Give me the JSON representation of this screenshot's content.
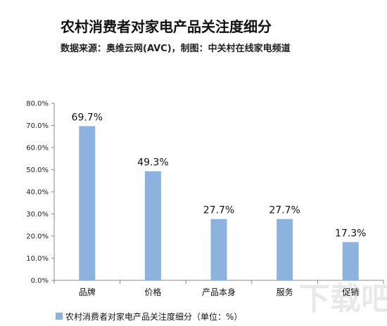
{
  "header": {
    "title": "农村消费者对家电产品关注度细分",
    "subtitle": "数据来源：奥维云网(AVC)，制图：中关村在线家电频道"
  },
  "chart_data": {
    "type": "bar",
    "categories": [
      "品牌",
      "价格",
      "产品本身",
      "服务",
      "促销"
    ],
    "series": [
      {
        "name": "农村消费者对家电产品关注度细分（单位：%）",
        "values": [
          69.7,
          49.3,
          27.7,
          27.7,
          17.3
        ]
      }
    ],
    "data_labels": [
      "69.7%",
      "49.3%",
      "27.7%",
      "27.7%",
      "17.3%"
    ],
    "ylim": [
      0,
      80
    ],
    "yticks": [
      "0.0%",
      "10.0%",
      "20.0%",
      "30.0%",
      "40.0%",
      "50.0%",
      "60.0%",
      "70.0%",
      "80.0%"
    ],
    "grid": false,
    "legend_position": "bottom-left",
    "bar_color": "#8eb2de"
  },
  "watermark": "下载吧"
}
